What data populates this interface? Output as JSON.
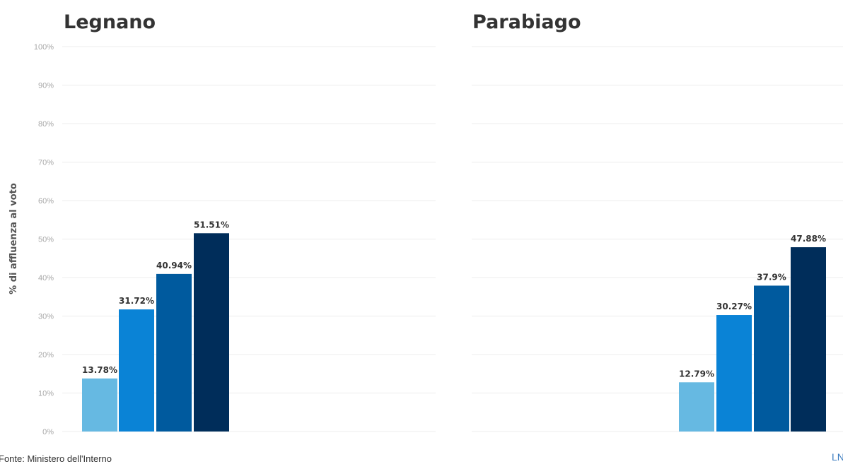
{
  "chart_data": [
    {
      "type": "bar",
      "title": "Legnano",
      "ylabel": "% di affluenza al voto",
      "ylim": [
        0,
        100
      ],
      "y_ticks": [
        "0%",
        "10%",
        "20%",
        "30%",
        "40%",
        "50%",
        "60%",
        "70%",
        "80%",
        "90%",
        "100%"
      ],
      "grid": true,
      "values": [
        13.78,
        31.72,
        40.94,
        51.51
      ],
      "value_labels": [
        "13.78%",
        "31.72%",
        "40.94%",
        "51.51%"
      ],
      "colors": [
        "#66b9e2",
        "#0a83d6",
        "#005a9e",
        "#002d5a"
      ]
    },
    {
      "type": "bar",
      "title": "Parabiago",
      "ylim": [
        0,
        100
      ],
      "grid": true,
      "values": [
        12.79,
        30.27,
        37.9,
        47.88
      ],
      "value_labels": [
        "12.79%",
        "30.27%",
        "37.9%",
        "47.88%"
      ],
      "colors": [
        "#66b9e2",
        "#0a83d6",
        "#005a9e",
        "#002d5a"
      ]
    }
  ],
  "footer": {
    "source": "Fonte: Ministero dell'Interno",
    "logo": "LN"
  }
}
